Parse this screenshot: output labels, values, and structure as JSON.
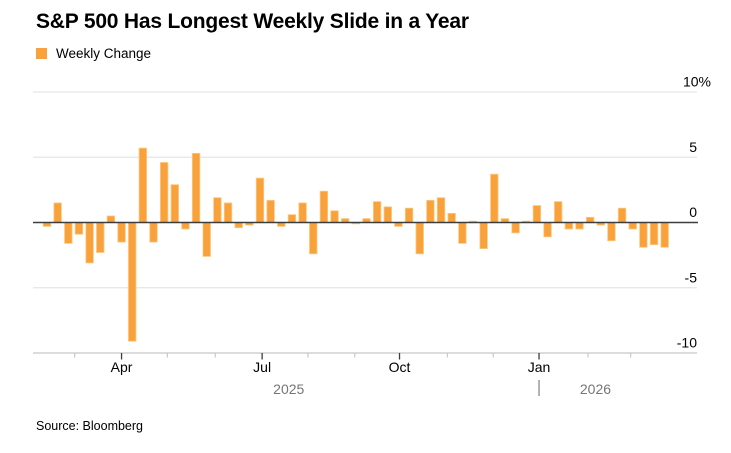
{
  "title": "S&P 500 Has Longest Weekly Slide in a Year",
  "legend": {
    "label": "Weekly Change"
  },
  "source": "Source: Bloomberg",
  "chart_data": {
    "type": "bar",
    "title": "S&P 500 Has Longest Weekly Slide in a Year",
    "series_name": "Weekly Change",
    "unit": "percent",
    "values": [
      -0.3,
      1.5,
      -1.6,
      -0.9,
      -3.1,
      -2.3,
      0.5,
      -1.5,
      -9.1,
      5.7,
      -1.5,
      4.6,
      2.9,
      -0.5,
      5.3,
      -2.6,
      1.9,
      1.5,
      -0.4,
      -0.2,
      3.4,
      1.7,
      -0.3,
      0.6,
      1.5,
      -2.4,
      2.4,
      0.9,
      0.3,
      -0.1,
      0.3,
      1.6,
      1.2,
      -0.3,
      1.1,
      -2.4,
      1.7,
      1.9,
      0.7,
      -1.6,
      0.1,
      -2.0,
      3.7,
      0.3,
      -0.8,
      0.1,
      1.3,
      -1.1,
      1.6,
      -0.5,
      -0.5,
      0.4,
      -0.2,
      -1.4,
      1.1,
      -0.5,
      -1.9,
      -1.7,
      -1.9
    ],
    "x_unit": "week-index",
    "ylim": [
      -10,
      10
    ],
    "grid": true,
    "legend_position": "top-left",
    "y_axis": {
      "ticks": [
        {
          "v": 10,
          "label": "10%"
        },
        {
          "v": 5,
          "label": "5"
        },
        {
          "v": 0,
          "label": "0"
        },
        {
          "v": -5,
          "label": "-5"
        },
        {
          "v": -10,
          "label": "-10"
        }
      ]
    },
    "x_axis": {
      "major_ticks": [
        {
          "label": "Apr",
          "week": 8.0
        },
        {
          "label": "Jul",
          "week": 21.2
        },
        {
          "label": "Oct",
          "week": 34.1
        },
        {
          "label": "Jan",
          "week": 47.2
        }
      ],
      "minor_tick_weeks": [
        3.6,
        12.3,
        16.8,
        25.5,
        29.9,
        38.6,
        42.9,
        51.8,
        55.8
      ],
      "year_labels": [
        {
          "label": "2025",
          "week": 23.7
        },
        {
          "label": "2026",
          "week": 52.5
        }
      ],
      "year_divider_week": 47.2
    },
    "colors": {
      "bar": "#F9A13B",
      "bar_edge": "#FCC983",
      "grid": "#E5E5E5",
      "zero_line": "#3D3D3D",
      "axis_line": "#C8C8C8",
      "tick_major": "#3D3D3D",
      "tick_minor": "#C8C8C8",
      "axis_text": "#000000",
      "year_text": "#767676",
      "divider": "#999999"
    }
  }
}
